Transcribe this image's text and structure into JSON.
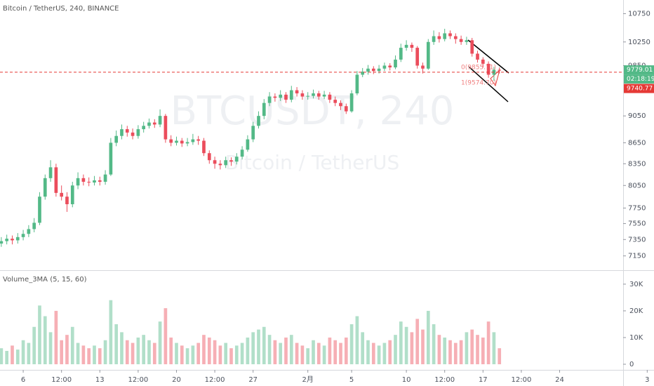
{
  "chart_data": [
    {
      "type": "candlestick",
      "title": "Bitcoin / TetherUS, 240, BINANCE",
      "watermark": "BTCUSDT, 240",
      "watermark_subtitle": "Bitcoin / TetherUS",
      "log_scale": true,
      "grid": false,
      "up_color": "#53b987",
      "down_color": "#eb4d5c",
      "x": [
        4,
        4.5,
        5,
        5.5,
        6,
        6.5,
        7,
        7.5,
        8,
        8.5,
        9,
        9.5,
        10,
        10.5,
        11,
        11.5,
        12,
        12.5,
        13,
        13.5,
        14,
        14.5,
        15,
        15.5,
        16,
        16.5,
        17,
        17.5,
        18,
        18.5,
        19,
        19.5,
        20,
        20.5,
        21,
        21.5,
        22,
        22.5,
        23,
        23.5,
        24,
        24.5,
        25,
        25.5,
        26,
        26.5,
        27,
        27.5,
        28,
        28.5,
        29,
        29.5,
        30,
        30.5,
        31,
        31.5,
        32,
        32.5,
        33,
        33.5,
        34,
        34.5,
        35,
        35.5,
        36,
        36.5,
        37,
        37.5,
        38,
        38.5,
        39,
        39.5,
        40,
        40.5,
        41,
        41.5,
        42,
        42.5,
        43,
        43.5,
        44,
        44.5,
        45,
        45.5,
        46,
        46.5,
        47,
        47.5,
        48,
        48.5,
        49,
        49.5
      ],
      "open": [
        7300,
        7330,
        7360,
        7340,
        7380,
        7420,
        7480,
        7560,
        7900,
        8150,
        8300,
        7950,
        7900,
        7800,
        8050,
        8150,
        8100,
        8090,
        8120,
        8100,
        8200,
        8650,
        8750,
        8850,
        8800,
        8750,
        8850,
        8900,
        8950,
        8920,
        9050,
        8700,
        8650,
        8680,
        8640,
        8660,
        8700,
        8680,
        8500,
        8400,
        8350,
        8330,
        8400,
        8380,
        8450,
        8550,
        8700,
        8900,
        9050,
        9250,
        9350,
        9330,
        9380,
        9300,
        9450,
        9400,
        9350,
        9360,
        9400,
        9350,
        9380,
        9300,
        9250,
        9200,
        9120,
        9400,
        9700,
        9750,
        9800,
        9760,
        9800,
        9850,
        9820,
        9950,
        10150,
        10200,
        10150,
        9850,
        9800,
        10250,
        10350,
        10300,
        10400,
        10350,
        10300,
        10250,
        10280,
        10050,
        9950,
        9880,
        9700,
        9780
      ],
      "high": [
        7380,
        7410,
        7400,
        7430,
        7470,
        7530,
        7620,
        7960,
        8200,
        8400,
        8350,
        8050,
        7960,
        8100,
        8230,
        8200,
        8160,
        8180,
        8170,
        8260,
        8720,
        8830,
        8920,
        8900,
        8860,
        8910,
        8960,
        9010,
        9000,
        9150,
        9080,
        8760,
        8740,
        8720,
        8720,
        8780,
        8750,
        8720,
        8540,
        8450,
        8400,
        8450,
        8440,
        8500,
        8600,
        8760,
        8960,
        9120,
        9310,
        9420,
        9400,
        9450,
        9420,
        9520,
        9500,
        9450,
        9420,
        9460,
        9440,
        9440,
        9420,
        9350,
        9290,
        9240,
        9450,
        9760,
        9810,
        9860,
        9840,
        9860,
        9900,
        9890,
        10020,
        10220,
        10280,
        10240,
        10180,
        9900,
        10300,
        10450,
        10420,
        10480,
        10450,
        10400,
        10360,
        10340,
        10320,
        10100,
        9990,
        9920,
        9830,
        9820
      ],
      "low": [
        7260,
        7290,
        7290,
        7300,
        7340,
        7380,
        7440,
        7530,
        7860,
        8100,
        7900,
        7850,
        7700,
        7760,
        8000,
        8050,
        8040,
        8050,
        8050,
        8060,
        8180,
        8600,
        8700,
        8740,
        8700,
        8710,
        8800,
        8860,
        8870,
        8880,
        8650,
        8600,
        8610,
        8590,
        8600,
        8620,
        8620,
        8460,
        8350,
        8280,
        8270,
        8290,
        8320,
        8340,
        8410,
        8520,
        8660,
        8860,
        9000,
        9200,
        9270,
        9280,
        9250,
        9260,
        9350,
        9300,
        9300,
        9320,
        9300,
        9310,
        9250,
        9200,
        9140,
        9080,
        9100,
        9370,
        9660,
        9700,
        9710,
        9720,
        9760,
        9770,
        9790,
        9910,
        10100,
        10080,
        9800,
        9720,
        9780,
        10200,
        10240,
        10260,
        10300,
        10220,
        10200,
        10200,
        10000,
        9900,
        9820,
        9650,
        9600,
        9720
      ],
      "close": [
        7330,
        7360,
        7340,
        7380,
        7420,
        7480,
        7560,
        7900,
        8150,
        8300,
        7950,
        7900,
        7800,
        8050,
        8150,
        8100,
        8090,
        8120,
        8100,
        8200,
        8650,
        8750,
        8850,
        8800,
        8750,
        8850,
        8900,
        8950,
        8920,
        9050,
        8700,
        8650,
        8680,
        8640,
        8660,
        8700,
        8680,
        8500,
        8400,
        8350,
        8330,
        8400,
        8380,
        8450,
        8550,
        8700,
        8900,
        9050,
        9250,
        9350,
        9330,
        9380,
        9300,
        9450,
        9400,
        9350,
        9360,
        9400,
        9350,
        9380,
        9300,
        9250,
        9200,
        9120,
        9400,
        9700,
        9750,
        9800,
        9760,
        9800,
        9850,
        9820,
        9950,
        10150,
        10200,
        10150,
        9850,
        9800,
        10250,
        10350,
        10300,
        10400,
        10350,
        10300,
        10250,
        10280,
        10050,
        9950,
        9880,
        9700,
        9780,
        9779.01
      ],
      "xlim": [
        3.88,
        60.8
      ],
      "xticks": [
        {
          "value": 6,
          "label": "6"
        },
        {
          "value": 9.5,
          "label": "12:00"
        },
        {
          "value": 13,
          "label": "13"
        },
        {
          "value": 16.5,
          "label": "12:00"
        },
        {
          "value": 20,
          "label": "20"
        },
        {
          "value": 23.5,
          "label": "12:00"
        },
        {
          "value": 27,
          "label": "27"
        },
        {
          "value": 32,
          "label": "2月"
        },
        {
          "value": 36,
          "label": "5"
        },
        {
          "value": 41,
          "label": "10"
        },
        {
          "value": 44.5,
          "label": "12:00"
        },
        {
          "value": 48,
          "label": "17"
        },
        {
          "value": 51.5,
          "label": "12:00"
        },
        {
          "value": 55,
          "label": "24"
        },
        {
          "value": 63,
          "label": "3"
        }
      ],
      "ylim": [
        6980,
        11000
      ],
      "yticks": [
        7150,
        7350,
        7550,
        7750,
        8050,
        8350,
        8650,
        9050,
        9850,
        10250,
        10750
      ],
      "last_price": 9779.01,
      "countdown": "02:18:19",
      "alert_price": 9740.77,
      "annotations": [
        "0(9855.71)",
        "1(9574.70)"
      ]
    },
    {
      "type": "volume",
      "title": "Volume_3MA (5, 15, 60)",
      "values": [
        6000,
        5000,
        7000,
        5500,
        9000,
        8000,
        14000,
        22000,
        18000,
        12000,
        20000,
        9000,
        11000,
        14000,
        8000,
        7000,
        6000,
        7000,
        6000,
        9000,
        24000,
        15000,
        12000,
        9000,
        8000,
        10000,
        11000,
        9000,
        8000,
        16000,
        21000,
        10000,
        8000,
        7000,
        6000,
        7000,
        8000,
        11000,
        10000,
        9000,
        7000,
        8000,
        6000,
        7000,
        8000,
        10000,
        12000,
        13000,
        14000,
        11000,
        9000,
        8000,
        10000,
        11000,
        8000,
        7000,
        6000,
        9000,
        8000,
        7000,
        10000,
        9000,
        8000,
        10000,
        15000,
        18000,
        12000,
        9000,
        8000,
        7000,
        8000,
        9000,
        11000,
        16000,
        14000,
        12000,
        17000,
        13000,
        20000,
        15000,
        11000,
        10000,
        9000,
        8000,
        9000,
        12000,
        13000,
        11000,
        10000,
        16000,
        12000,
        6000
      ],
      "ylim": [
        -2100,
        34700
      ],
      "yticks": [
        0,
        {
          "value": 10000,
          "label": "10K"
        },
        {
          "value": 20000,
          "label": "20K"
        },
        {
          "value": 30000,
          "label": "30K"
        }
      ]
    }
  ]
}
